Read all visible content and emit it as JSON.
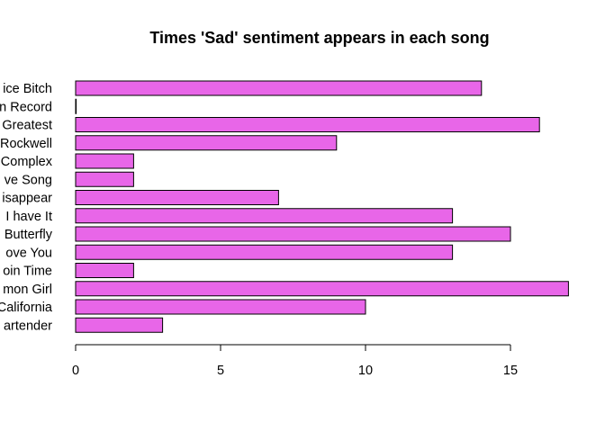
{
  "chart_data": {
    "type": "bar",
    "orientation": "horizontal",
    "title": "Times 'Sad' sentiment appears in each song",
    "xlabel": "",
    "ylabel": "",
    "categories": [
      "ice Bitch",
      "n Record",
      "Greatest",
      "Rockwell",
      "Complex",
      "ve Song",
      "isappear",
      "I have It",
      "Butterfly",
      "ove You",
      "oin Time",
      "mon Girl",
      "California",
      "artender"
    ],
    "values": [
      14,
      0,
      16,
      9,
      2,
      2,
      7,
      13,
      15,
      13,
      2,
      17,
      10,
      3
    ],
    "xlim": [
      0,
      17
    ],
    "xticks": [
      0,
      5,
      10,
      15
    ],
    "xtick_labels": [
      "0",
      "5",
      "10",
      "15"
    ],
    "grid": false,
    "bar_color": "#e866e8",
    "bar_border_color": "#000000"
  }
}
